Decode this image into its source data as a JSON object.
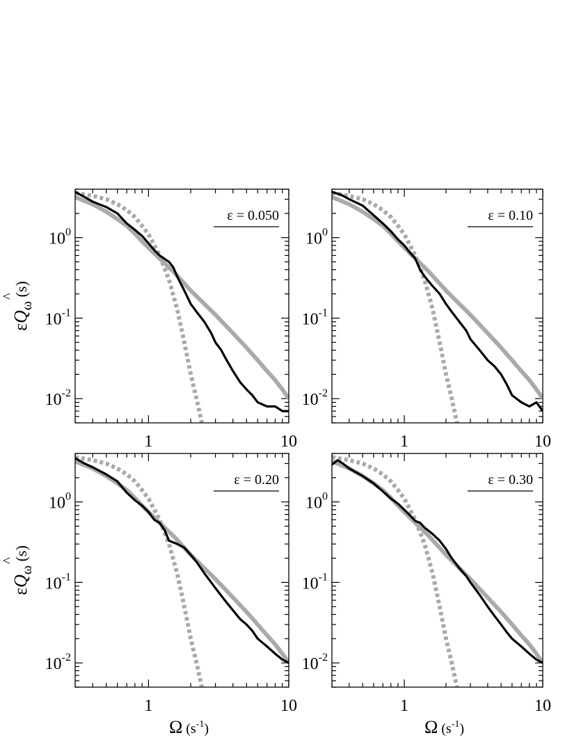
{
  "chart_data": [
    {
      "type": "line",
      "panel": "top-left",
      "annotation": "ε = 0.050",
      "xscale": "log",
      "yscale": "log",
      "xlim": [
        0.3,
        10
      ],
      "ylim": [
        0.005,
        4
      ],
      "x_ticks": [
        1,
        10
      ],
      "x_tick_labels": [
        "1",
        "10"
      ],
      "y_ticks": [
        1,
        0.1,
        0.01
      ],
      "y_tick_labels": [
        {
          "base": "10",
          "exp": "0"
        },
        {
          "base": "10",
          "exp": "-1"
        },
        {
          "base": "10",
          "exp": "-2"
        }
      ],
      "ylabel": {
        "main": "ε",
        "symbol": "Q",
        "hat": "^",
        "sub": "ω",
        "unit": "(s)"
      },
      "series": [
        {
          "style": "black-solid",
          "x": [
            0.3,
            0.35,
            0.4,
            0.5,
            0.6,
            0.7,
            0.8,
            0.9,
            1.0,
            1.1,
            1.2,
            1.4,
            1.5,
            1.6,
            1.8,
            2.0,
            2.2,
            2.5,
            2.8,
            3.0,
            3.3,
            3.5,
            4.0,
            4.5,
            5.0,
            5.5,
            6.0,
            7.0,
            8.0,
            9.0,
            10.0
          ],
          "y": [
            3.7,
            3.2,
            2.8,
            2.4,
            2.0,
            1.5,
            1.25,
            1.05,
            0.85,
            0.7,
            0.6,
            0.5,
            0.43,
            0.33,
            0.22,
            0.15,
            0.12,
            0.09,
            0.065,
            0.05,
            0.04,
            0.033,
            0.022,
            0.016,
            0.013,
            0.011,
            0.009,
            0.008,
            0.008,
            0.007,
            0.007
          ]
        },
        {
          "style": "grey-solid",
          "x": [
            0.3,
            0.4,
            0.5,
            0.6,
            0.7,
            0.8,
            0.9,
            1.0,
            1.2,
            1.5,
            2.0,
            2.5,
            3.0,
            4.0,
            5.0,
            6.0,
            7.0,
            8.0,
            9.0,
            10.0
          ],
          "y": [
            3.2,
            2.6,
            2.1,
            1.7,
            1.4,
            1.12,
            0.9,
            0.75,
            0.55,
            0.38,
            0.22,
            0.15,
            0.11,
            0.065,
            0.043,
            0.03,
            0.022,
            0.017,
            0.013,
            0.01
          ]
        },
        {
          "style": "grey-dotted",
          "x": [
            0.3,
            0.4,
            0.5,
            0.6,
            0.7,
            0.8,
            0.9,
            1.0,
            1.2,
            1.4,
            1.6,
            1.8,
            2.0,
            2.2,
            2.4
          ],
          "y": [
            3.6,
            3.3,
            3.0,
            2.6,
            2.2,
            1.8,
            1.4,
            1.1,
            0.6,
            0.3,
            0.13,
            0.05,
            0.02,
            0.01,
            0.005
          ]
        }
      ]
    },
    {
      "type": "line",
      "panel": "top-right",
      "annotation": "ε = 0.10",
      "xscale": "log",
      "yscale": "log",
      "xlim": [
        0.3,
        10
      ],
      "ylim": [
        0.005,
        4
      ],
      "x_ticks": [
        1,
        10
      ],
      "x_tick_labels": [
        "1",
        "10"
      ],
      "y_ticks": [
        1,
        0.1,
        0.01
      ],
      "y_tick_labels": [
        {
          "base": "10",
          "exp": "0"
        },
        {
          "base": "10",
          "exp": "-1"
        },
        {
          "base": "10",
          "exp": "-2"
        }
      ],
      "series": [
        {
          "style": "black-solid",
          "x": [
            0.3,
            0.35,
            0.4,
            0.5,
            0.6,
            0.7,
            0.8,
            0.9,
            1.0,
            1.1,
            1.2,
            1.3,
            1.4,
            1.6,
            1.8,
            2.0,
            2.2,
            2.5,
            2.8,
            3.0,
            3.5,
            4.0,
            4.5,
            5.0,
            5.5,
            6.0,
            7.0,
            8.0,
            9.0,
            10.0
          ],
          "y": [
            3.7,
            3.4,
            3.0,
            2.5,
            1.9,
            1.5,
            1.2,
            0.95,
            0.8,
            0.65,
            0.55,
            0.4,
            0.33,
            0.25,
            0.2,
            0.15,
            0.12,
            0.09,
            0.07,
            0.055,
            0.04,
            0.03,
            0.025,
            0.02,
            0.015,
            0.011,
            0.009,
            0.008,
            0.009,
            0.007
          ]
        },
        {
          "style": "grey-solid",
          "x": [
            0.3,
            0.4,
            0.5,
            0.6,
            0.7,
            0.8,
            0.9,
            1.0,
            1.2,
            1.5,
            2.0,
            2.5,
            3.0,
            4.0,
            5.0,
            6.0,
            7.0,
            8.0,
            9.0,
            10.0
          ],
          "y": [
            3.2,
            2.6,
            2.1,
            1.7,
            1.4,
            1.12,
            0.9,
            0.75,
            0.55,
            0.38,
            0.22,
            0.15,
            0.11,
            0.065,
            0.043,
            0.03,
            0.022,
            0.017,
            0.013,
            0.01
          ]
        },
        {
          "style": "grey-dotted",
          "x": [
            0.3,
            0.4,
            0.5,
            0.6,
            0.7,
            0.8,
            0.9,
            1.0,
            1.2,
            1.4,
            1.6,
            1.8,
            2.0,
            2.2,
            2.4
          ],
          "y": [
            3.6,
            3.3,
            3.0,
            2.6,
            2.2,
            1.8,
            1.4,
            1.1,
            0.6,
            0.3,
            0.13,
            0.05,
            0.02,
            0.01,
            0.005
          ]
        }
      ]
    },
    {
      "type": "line",
      "panel": "bottom-left",
      "annotation": "ε = 0.20",
      "xscale": "log",
      "yscale": "log",
      "xlim": [
        0.3,
        10
      ],
      "ylim": [
        0.005,
        4
      ],
      "x_ticks": [
        1,
        10
      ],
      "x_tick_labels": [
        "1",
        "10"
      ],
      "y_ticks": [
        1,
        0.1,
        0.01
      ],
      "y_tick_labels": [
        {
          "base": "10",
          "exp": "0"
        },
        {
          "base": "10",
          "exp": "-1"
        },
        {
          "base": "10",
          "exp": "-2"
        }
      ],
      "ylabel": {
        "main": "ε",
        "symbol": "Q",
        "hat": "^",
        "sub": "ω",
        "unit": "(s)"
      },
      "xlabel": {
        "main": "Ω",
        "unit": "(s",
        "unit_exp": "-1",
        "unit_close": ")"
      },
      "series": [
        {
          "style": "black-solid",
          "x": [
            0.3,
            0.35,
            0.4,
            0.5,
            0.6,
            0.7,
            0.8,
            0.9,
            1.0,
            1.1,
            1.2,
            1.3,
            1.4,
            1.6,
            1.8,
            2.0,
            2.2,
            2.5,
            2.8,
            3.0,
            3.5,
            4.0,
            4.5,
            5.0,
            5.5,
            6.0,
            7.0,
            8.0,
            9.0,
            10.0
          ],
          "y": [
            3.5,
            3.0,
            2.7,
            2.2,
            1.8,
            1.3,
            1.05,
            0.9,
            0.75,
            0.6,
            0.55,
            0.45,
            0.33,
            0.3,
            0.27,
            0.22,
            0.18,
            0.13,
            0.1,
            0.085,
            0.06,
            0.045,
            0.035,
            0.03,
            0.025,
            0.02,
            0.016,
            0.013,
            0.011,
            0.01
          ]
        },
        {
          "style": "grey-solid",
          "x": [
            0.3,
            0.4,
            0.5,
            0.6,
            0.7,
            0.8,
            0.9,
            1.0,
            1.2,
            1.5,
            2.0,
            2.5,
            3.0,
            4.0,
            5.0,
            6.0,
            7.0,
            8.0,
            9.0,
            10.0
          ],
          "y": [
            3.2,
            2.6,
            2.1,
            1.7,
            1.4,
            1.12,
            0.9,
            0.75,
            0.55,
            0.38,
            0.22,
            0.15,
            0.11,
            0.065,
            0.043,
            0.03,
            0.022,
            0.017,
            0.013,
            0.01
          ]
        },
        {
          "style": "grey-dotted",
          "x": [
            0.3,
            0.4,
            0.5,
            0.6,
            0.7,
            0.8,
            0.9,
            1.0,
            1.2,
            1.4,
            1.6,
            1.8,
            2.0,
            2.2,
            2.4
          ],
          "y": [
            3.6,
            3.3,
            3.0,
            2.6,
            2.2,
            1.8,
            1.4,
            1.1,
            0.6,
            0.3,
            0.13,
            0.05,
            0.02,
            0.01,
            0.005
          ]
        }
      ]
    },
    {
      "type": "line",
      "panel": "bottom-right",
      "annotation": "ε = 0.30",
      "xscale": "log",
      "yscale": "log",
      "xlim": [
        0.3,
        10
      ],
      "ylim": [
        0.005,
        4
      ],
      "x_ticks": [
        1,
        10
      ],
      "x_tick_labels": [
        "1",
        "10"
      ],
      "y_ticks": [
        1,
        0.1,
        0.01
      ],
      "y_tick_labels": [
        {
          "base": "10",
          "exp": "0"
        },
        {
          "base": "10",
          "exp": "-1"
        },
        {
          "base": "10",
          "exp": "-2"
        }
      ],
      "xlabel": {
        "main": "Ω",
        "unit": "(s",
        "unit_exp": "-1",
        "unit_close": ")"
      },
      "series": [
        {
          "style": "black-solid",
          "x": [
            0.3,
            0.33,
            0.36,
            0.4,
            0.5,
            0.6,
            0.7,
            0.8,
            0.9,
            1.0,
            1.1,
            1.2,
            1.3,
            1.4,
            1.6,
            1.8,
            2.0,
            2.2,
            2.5,
            2.8,
            3.0,
            3.5,
            4.0,
            4.5,
            5.0,
            5.5,
            6.0,
            7.0,
            8.0,
            9.0,
            10.0
          ],
          "y": [
            2.9,
            3.3,
            3.0,
            2.6,
            2.1,
            1.7,
            1.35,
            1.1,
            0.95,
            0.8,
            0.68,
            0.58,
            0.55,
            0.48,
            0.4,
            0.33,
            0.26,
            0.2,
            0.15,
            0.12,
            0.1,
            0.07,
            0.05,
            0.038,
            0.03,
            0.024,
            0.02,
            0.016,
            0.013,
            0.011,
            0.01
          ]
        },
        {
          "style": "grey-solid",
          "x": [
            0.3,
            0.4,
            0.5,
            0.6,
            0.7,
            0.8,
            0.9,
            1.0,
            1.2,
            1.5,
            2.0,
            2.5,
            3.0,
            4.0,
            5.0,
            6.0,
            7.0,
            8.0,
            9.0,
            10.0
          ],
          "y": [
            3.2,
            2.6,
            2.1,
            1.7,
            1.4,
            1.12,
            0.9,
            0.75,
            0.55,
            0.38,
            0.22,
            0.15,
            0.11,
            0.065,
            0.043,
            0.03,
            0.022,
            0.017,
            0.013,
            0.01
          ]
        },
        {
          "style": "grey-dotted",
          "x": [
            0.3,
            0.4,
            0.5,
            0.6,
            0.7,
            0.8,
            0.9,
            1.0,
            1.2,
            1.4,
            1.6,
            1.8,
            2.0,
            2.2,
            2.4
          ],
          "y": [
            3.6,
            3.3,
            3.0,
            2.6,
            2.2,
            1.8,
            1.4,
            1.1,
            0.6,
            0.3,
            0.13,
            0.05,
            0.02,
            0.01,
            0.005
          ]
        }
      ]
    }
  ]
}
